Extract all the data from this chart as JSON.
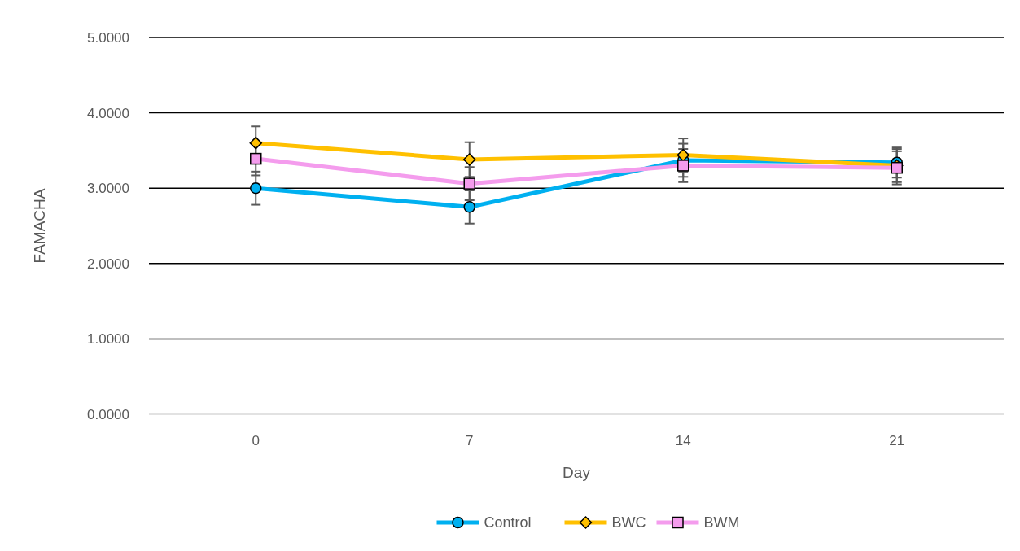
{
  "chart_data": {
    "type": "line",
    "xlabel": "Day",
    "ylabel": "FAMACHA",
    "categories": [
      "0",
      "7",
      "14",
      "21"
    ],
    "series": [
      {
        "name": "Control",
        "color": "#00b0f0",
        "marker": "circle",
        "values": [
          3.0,
          2.75,
          3.37,
          3.34
        ],
        "errors": [
          0.22,
          0.22,
          0.22,
          0.2
        ]
      },
      {
        "name": "BWC",
        "color": "#ffc000",
        "marker": "diamond",
        "values": [
          3.6,
          3.38,
          3.44,
          3.3
        ],
        "errors": [
          0.22,
          0.23,
          0.22,
          0.22
        ]
      },
      {
        "name": "BWM",
        "color": "#f49ced",
        "marker": "square",
        "values": [
          3.39,
          3.06,
          3.3,
          3.27
        ],
        "errors": [
          0.22,
          0.22,
          0.22,
          0.22
        ]
      }
    ],
    "ylim": [
      0,
      5
    ],
    "yticks": [
      {
        "value": 0,
        "label": "0.0000"
      },
      {
        "value": 1,
        "label": "1.0000"
      },
      {
        "value": 2,
        "label": "2.0000"
      },
      {
        "value": 3,
        "label": "3.0000"
      },
      {
        "value": 4,
        "label": "4.0000"
      },
      {
        "value": 5,
        "label": "5.0000"
      }
    ],
    "grid": "y",
    "legend": "bottom"
  }
}
